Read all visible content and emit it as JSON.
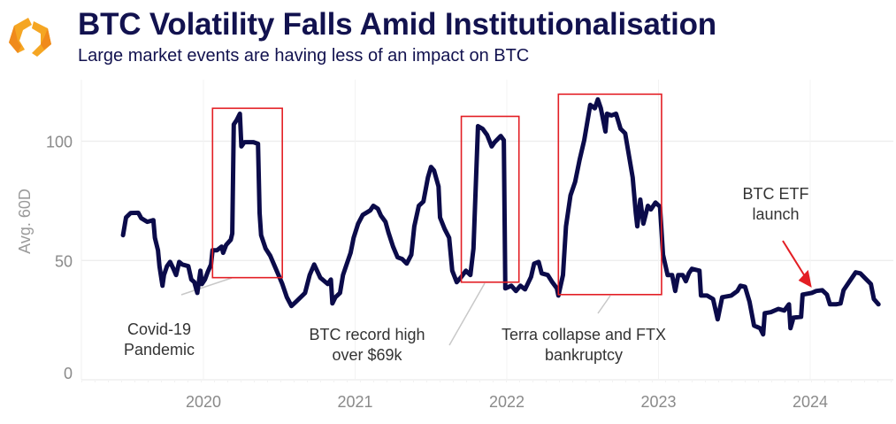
{
  "header": {
    "title": "BTC Volatility Falls Amid Institutionalisation",
    "subtitle": "Large market events are having less of an impact on BTC",
    "logo": "orange-hexagon-logo"
  },
  "colors": {
    "line": "#0b0b4a",
    "title": "#12124f",
    "box": "#e31e24",
    "arrow": "#e31e24",
    "leader": "#c8c8c8"
  },
  "chart_data": {
    "type": "line",
    "ylabel": "Avg. 60D",
    "xlabel": "",
    "ylim": [
      0,
      120
    ],
    "xlim": [
      2019.3,
      2024.55
    ],
    "yticks": [
      0,
      50,
      100
    ],
    "xticks": [
      2020,
      2021,
      2022,
      2023,
      2024
    ],
    "grid": true,
    "series": [
      {
        "x": [
          2019.47,
          2019.49,
          2019.52,
          2019.57,
          2019.59,
          2019.63,
          2019.67,
          2019.68,
          2019.7,
          2019.71,
          2019.73,
          2019.74,
          2019.76,
          2019.78,
          2019.8,
          2019.82,
          2019.84,
          2019.86,
          2019.9,
          2019.92,
          2019.94,
          2019.96,
          2019.98,
          2019.99,
          2020.01,
          2020.03,
          2020.05,
          2020.06,
          2020.09,
          2020.12,
          2020.13,
          2020.15,
          2020.18,
          2020.19,
          2020.2,
          2020.22,
          2020.24,
          2020.25,
          2020.27,
          2020.33,
          2020.36,
          2020.37,
          2020.38,
          2020.41,
          2020.44,
          2020.47,
          2020.5,
          2020.52,
          2020.55,
          2020.58,
          2020.61,
          2020.67,
          2020.7,
          2020.73,
          2020.77,
          2020.82,
          2020.84,
          2020.85,
          2020.87,
          2020.9,
          2020.92,
          2020.94,
          2020.97,
          2020.99,
          2021.02,
          2021.05,
          2021.1,
          2021.12,
          2021.15,
          2021.17,
          2021.2,
          2021.22,
          2021.25,
          2021.28,
          2021.31,
          2021.34,
          2021.37,
          2021.39,
          2021.42,
          2021.45,
          2021.48,
          2021.5,
          2021.52,
          2021.55,
          2021.56,
          2021.59,
          2021.62,
          2021.64,
          2021.67,
          2021.7,
          2021.73,
          2021.76,
          2021.78,
          2021.81,
          2021.84,
          2021.87,
          2021.9,
          2021.92,
          2021.96,
          2021.98,
          2021.99,
          2022.03,
          2022.06,
          2022.09,
          2022.12,
          2022.16,
          2022.18,
          2022.21,
          2022.23,
          2022.27,
          2022.3,
          2022.33,
          2022.34,
          2022.37,
          2022.39,
          2022.42,
          2022.45,
          2022.48,
          2022.51,
          2022.54,
          2022.55,
          2022.58,
          2022.6,
          2022.62,
          2022.65,
          2022.66,
          2022.69,
          2022.72,
          2022.75,
          2022.78,
          2022.8,
          2022.83,
          2022.85,
          2022.86,
          2022.88,
          2022.9,
          2022.93,
          2022.95,
          2022.98,
          2023.01,
          2023.03,
          2023.06,
          2023.09,
          2023.11,
          2023.13,
          2023.16,
          2023.18,
          2023.2,
          2023.22,
          2023.27,
          2023.28,
          2023.32,
          2023.36,
          2023.39,
          2023.42,
          2023.48,
          2023.52,
          2023.54,
          2023.57,
          2023.6,
          2023.63,
          2023.67,
          2023.69,
          2023.7,
          2023.74,
          2023.79,
          2023.83,
          2023.86,
          2023.87,
          2023.89,
          2023.94,
          2023.95,
          2024.01,
          2024.04,
          2024.08,
          2024.11,
          2024.13,
          2024.17,
          2024.2,
          2024.22,
          2024.26,
          2024.3,
          2024.33,
          2024.37,
          2024.4,
          2024.42,
          2024.45
        ],
        "values": [
          60.6,
          68,
          69.9,
          70,
          67.7,
          66.2,
          66.9,
          59.5,
          54.3,
          47.6,
          39.4,
          43.9,
          47.6,
          49.4,
          46.8,
          43.9,
          49.4,
          48.3,
          47.6,
          42,
          40.9,
          36.4,
          45.7,
          40.1,
          42,
          45.4,
          48.3,
          54.3,
          54.3,
          55.8,
          53.2,
          56.5,
          58.7,
          61.3,
          107,
          108.9,
          111.5,
          97.8,
          99.6,
          99.6,
          98.9,
          69.9,
          60.6,
          55,
          52,
          47.6,
          43.1,
          40.1,
          34.6,
          30.9,
          32.7,
          36.4,
          43.9,
          48.3,
          42.8,
          40.1,
          42,
          32,
          34.6,
          36.4,
          43.9,
          47.6,
          53.2,
          59.5,
          65.4,
          69.1,
          71,
          72.9,
          71.7,
          68.8,
          66.2,
          61.7,
          55.8,
          51.3,
          50.6,
          48.7,
          52.4,
          64.3,
          72.9,
          74.7,
          84.8,
          89.2,
          87.7,
          81,
          68,
          63.2,
          59.5,
          45.7,
          40.9,
          43.1,
          45.7,
          43.9,
          55,
          106.3,
          105.2,
          102.6,
          97.8,
          99.6,
          102.2,
          100.4,
          38.3,
          39.4,
          37.2,
          39.4,
          37.9,
          43.1,
          48.7,
          49.4,
          44.6,
          43.9,
          40.9,
          38.3,
          35.3,
          43.9,
          64.3,
          77.3,
          82.9,
          92.2,
          100.4,
          111.5,
          115.2,
          113.8,
          117.5,
          113.8,
          104.1,
          111.5,
          110.8,
          111.5,
          105.2,
          103.3,
          95.9,
          84.8,
          69.9,
          64.3,
          75.5,
          65.4,
          72.9,
          71.4,
          74.3,
          72.5,
          52.4,
          43.9,
          43.9,
          37.2,
          43.9,
          43.9,
          41.3,
          44.6,
          46.5,
          45.7,
          35.3,
          35.3,
          33.8,
          25.3,
          34.6,
          35.3,
          37.2,
          39.4,
          39,
          32.7,
          22.7,
          21.6,
          19,
          27.9,
          28.3,
          29.7,
          29,
          31.6,
          21.6,
          26,
          26.4,
          35.7,
          36.4,
          37.2,
          37.5,
          35.7,
          31.6,
          31.6,
          32,
          37.5,
          41.3,
          45,
          44.6,
          42,
          40.1,
          33.8,
          31.6
        ]
      }
    ],
    "annotations": [
      {
        "label_line1": "Covid-19",
        "label_line2": "Pandemic",
        "box_x": [
          2020.06,
          2020.52
        ],
        "box_y": [
          42.8,
          113.8
        ]
      },
      {
        "label_line1": "BTC record high",
        "label_line2": "over $69k",
        "box_x": [
          2021.7,
          2022.08
        ],
        "box_y": [
          40.9,
          110.4
        ]
      },
      {
        "label_line1": "Terra collapse and FTX",
        "label_line2": "bankruptcy",
        "box_x": [
          2022.34,
          2023.02
        ],
        "box_y": [
          35.7,
          119.7
        ]
      },
      {
        "label_line1": "BTC ETF",
        "label_line2": "launch",
        "point_x": 2024.01,
        "point_y": 36.4
      }
    ]
  }
}
